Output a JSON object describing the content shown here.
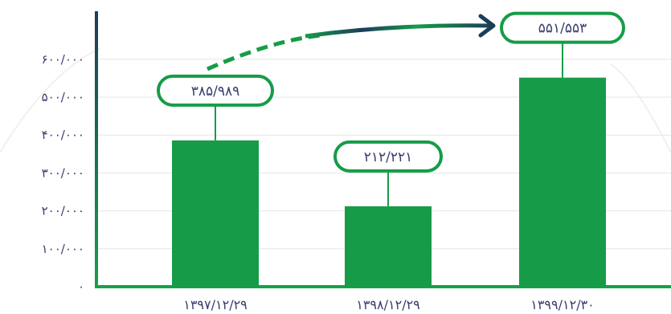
{
  "chart_data": {
    "type": "bar",
    "title": "",
    "xlabel": "",
    "ylabel": "",
    "categories": [
      "۱۳۹۷/۱۲/۲۹",
      "۱۳۹۸/۱۲/۲۹",
      "۱۳۹۹/۱۲/۳۰"
    ],
    "values": [
      385989,
      212221,
      551553
    ],
    "value_labels": [
      "۳۸۵/۹۸۹",
      "۲۱۲/۲۲۱",
      "۵۵۱/۵۵۳"
    ],
    "ylim": [
      0,
      680000
    ],
    "yticks": [
      0,
      100000,
      200000,
      300000,
      400000,
      500000,
      600000
    ],
    "ytick_labels": [
      "۰",
      "۱۰۰/۰۰۰",
      "۲۰۰/۰۰۰",
      "۳۰۰/۰۰۰",
      "۴۰۰/۰۰۰",
      "۵۰۰/۰۰۰",
      "۶۰۰/۰۰۰"
    ],
    "grid": true,
    "colors": {
      "bar": "#169c48",
      "label_border": "#169c48",
      "text": "#3a3d6e",
      "axis_top": "#1c3d5a",
      "axis_bottom": "#17a04a",
      "grid": "#e6e6e6"
    }
  }
}
